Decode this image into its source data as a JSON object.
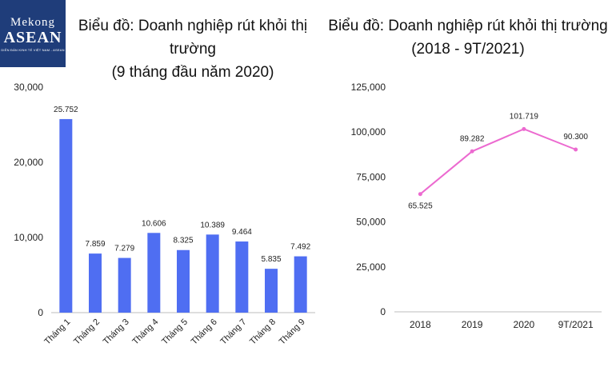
{
  "logo": {
    "line1": "Mekong",
    "line2": "ASEAN",
    "line3": "DIỄN ĐÀN KINH TẾ VIỆT NAM - ASEAN"
  },
  "chart_data": [
    {
      "type": "bar",
      "title": "Biểu đồ: Doanh nghiệp rút khỏi thị trường",
      "subtitle": "(9 tháng đầu năm 2020)",
      "categories": [
        "Tháng 1",
        "Tháng 2",
        "Tháng 3",
        "Tháng 4",
        "Tháng 5",
        "Tháng 6",
        "Tháng 7",
        "Tháng 8",
        "Tháng 9"
      ],
      "values": [
        25752,
        7859,
        7279,
        10606,
        8325,
        10389,
        9464,
        5835,
        7492
      ],
      "value_labels": [
        "25.752",
        "7.859",
        "7.279",
        "10.606",
        "8.325",
        "10.389",
        "9.464",
        "5.835",
        "7.492"
      ],
      "ylim": [
        0,
        30000
      ],
      "yticks": [
        0,
        10000,
        20000,
        30000
      ],
      "ytick_labels": [
        "0",
        "10,000",
        "20,000",
        "30,000"
      ],
      "color": "#4f6ef2",
      "grid": false
    },
    {
      "type": "line",
      "title": "Biểu đồ: Doanh nghiệp rút khỏi thị trường",
      "subtitle": "(2018 - 9T/2021)",
      "categories": [
        "2018",
        "2019",
        "2020",
        "9T/2021"
      ],
      "values": [
        65525,
        89282,
        101719,
        90300
      ],
      "value_labels": [
        "65.525",
        "89.282",
        "101.719",
        "90.300"
      ],
      "ylim": [
        0,
        125000
      ],
      "yticks": [
        0,
        25000,
        50000,
        75000,
        100000,
        125000
      ],
      "ytick_labels": [
        "0",
        "25,000",
        "50,000",
        "75,000",
        "100,000",
        "125,000"
      ],
      "color": "#ec6ad0",
      "grid": false
    }
  ]
}
